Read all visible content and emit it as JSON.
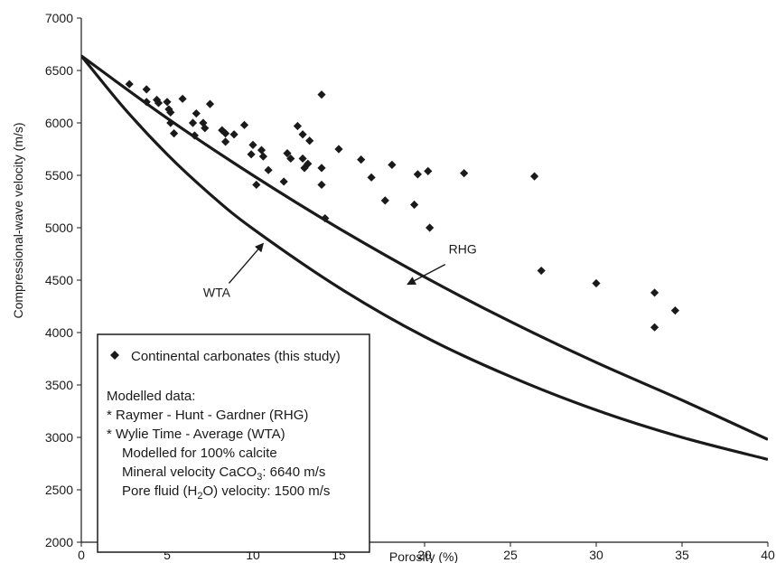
{
  "chart_data": {
    "type": "scatter",
    "xlabel": "Porosity (%)",
    "ylabel": "Compressional-wave velocity (m/s)",
    "xlim": [
      0,
      40
    ],
    "ylim": [
      2000,
      7000
    ],
    "x_ticks": [
      "0",
      "5",
      "10",
      "15",
      "20",
      "25",
      "30",
      "35",
      "40"
    ],
    "y_ticks": [
      "2000",
      "2500",
      "3000",
      "3500",
      "4000",
      "4500",
      "5000",
      "5500",
      "6000",
      "6500",
      "7000"
    ],
    "grid": false,
    "colors": {
      "ink": "#1a1a1a",
      "background": "#ffffff"
    },
    "series": [
      {
        "name": "Continental carbonates (this study)",
        "kind": "scatter",
        "marker": "diamond",
        "points": [
          [
            2.8,
            6370
          ],
          [
            3.8,
            6320
          ],
          [
            3.8,
            6200
          ],
          [
            4.4,
            6220
          ],
          [
            4.5,
            6190
          ],
          [
            5.0,
            6200
          ],
          [
            5.1,
            6130
          ],
          [
            5.2,
            6100
          ],
          [
            5.2,
            6000
          ],
          [
            5.4,
            5900
          ],
          [
            5.9,
            6230
          ],
          [
            6.5,
            6000
          ],
          [
            6.6,
            5880
          ],
          [
            6.7,
            6090
          ],
          [
            7.1,
            6000
          ],
          [
            7.2,
            5950
          ],
          [
            7.5,
            6180
          ],
          [
            8.2,
            5930
          ],
          [
            8.4,
            5900
          ],
          [
            8.4,
            5820
          ],
          [
            8.9,
            5890
          ],
          [
            9.5,
            5980
          ],
          [
            9.9,
            5700
          ],
          [
            10.0,
            5790
          ],
          [
            10.2,
            5410
          ],
          [
            10.5,
            5740
          ],
          [
            10.6,
            5680
          ],
          [
            10.9,
            5550
          ],
          [
            11.8,
            5440
          ],
          [
            12.0,
            5710
          ],
          [
            12.2,
            5660
          ],
          [
            12.6,
            5970
          ],
          [
            12.9,
            5890
          ],
          [
            12.9,
            5660
          ],
          [
            13.0,
            5570
          ],
          [
            13.2,
            5610
          ],
          [
            13.3,
            5830
          ],
          [
            14.0,
            6270
          ],
          [
            14.0,
            5570
          ],
          [
            14.0,
            5410
          ],
          [
            14.2,
            5090
          ],
          [
            15.0,
            5750
          ],
          [
            16.3,
            5650
          ],
          [
            16.9,
            5480
          ],
          [
            17.7,
            5260
          ],
          [
            18.1,
            5600
          ],
          [
            19.4,
            5220
          ],
          [
            19.6,
            5510
          ],
          [
            20.2,
            5540
          ],
          [
            20.3,
            5000
          ],
          [
            22.3,
            5520
          ],
          [
            26.4,
            5490
          ],
          [
            26.8,
            4590
          ],
          [
            30.0,
            4470
          ],
          [
            33.4,
            4380
          ],
          [
            33.4,
            4050
          ],
          [
            34.6,
            4210
          ]
        ]
      },
      {
        "name": "RHG",
        "kind": "line",
        "points": [
          [
            0,
            6640
          ],
          [
            5,
            6045
          ],
          [
            10,
            5500
          ],
          [
            15,
            4995
          ],
          [
            20,
            4530
          ],
          [
            25,
            4105
          ],
          [
            30,
            3715
          ],
          [
            35,
            3355
          ],
          [
            40,
            2980
          ]
        ]
      },
      {
        "name": "WTA",
        "kind": "line",
        "points": [
          [
            0,
            6640
          ],
          [
            2.5,
            6140
          ],
          [
            5,
            5700
          ],
          [
            7.5,
            5320
          ],
          [
            10,
            4990
          ],
          [
            15,
            4430
          ],
          [
            20,
            3960
          ],
          [
            25,
            3580
          ],
          [
            30,
            3260
          ],
          [
            35,
            3000
          ],
          [
            40,
            2790
          ]
        ]
      }
    ],
    "annotations": [
      {
        "label": "RHG",
        "text_x": 21.4,
        "text_y": 4755,
        "arrow_from": [
          21.2,
          4650
        ],
        "arrow_to": [
          19.0,
          4460
        ]
      },
      {
        "label": "WTA",
        "text_x": 7.1,
        "text_y": 4340,
        "arrow_from": [
          8.6,
          4470
        ],
        "arrow_to": [
          10.6,
          4850
        ]
      }
    ],
    "legend": {
      "placement": "bottom-left",
      "entry": "Continental carbonates (this study)",
      "notes": [
        "Modelled data:",
        "* Raymer - Hunt - Gardner (RHG)",
        "* Wylie Time - Average (WTA)",
        "Modelled for 100% calcite"
      ],
      "mineral_note": {
        "prefix": "Mineral velocity CaCO",
        "sub": "3",
        "suffix": ": 6640 m/s"
      },
      "fluid_note": {
        "prefix": "Pore fluid (H",
        "sub": "2",
        "suffix": "O) velocity: 1500 m/s"
      }
    }
  }
}
